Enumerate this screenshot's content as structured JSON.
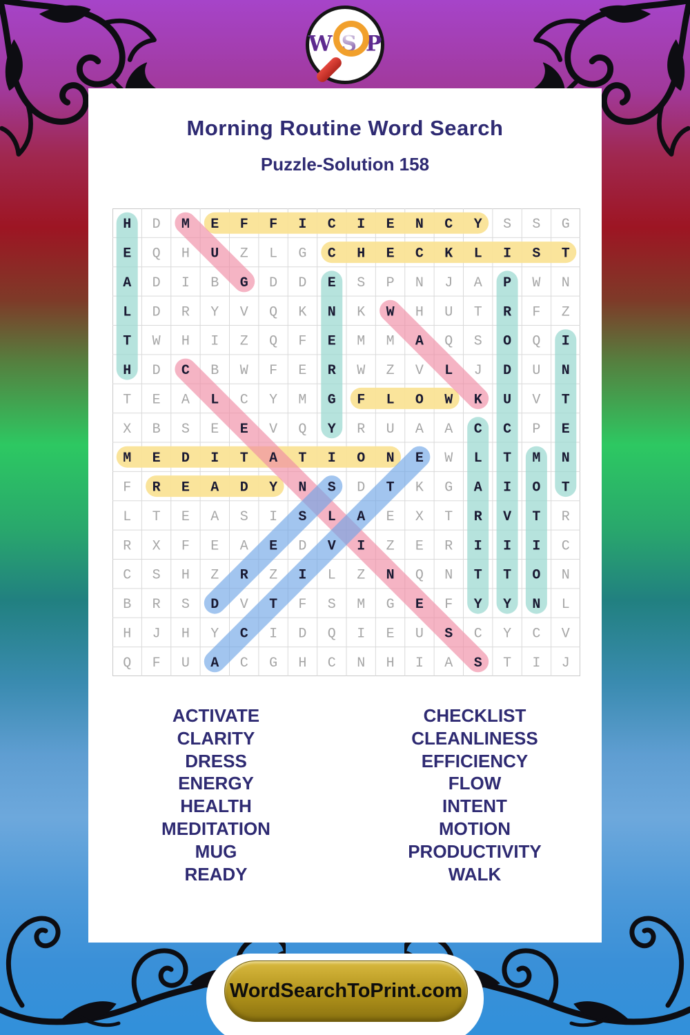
{
  "logo": {
    "w": "W",
    "s": "S",
    "p": "P"
  },
  "header": {
    "title": "Morning Routine Word Search",
    "subtitle": "Puzzle-Solution 158"
  },
  "puzzle": {
    "rows": 16,
    "cols": 16,
    "grid": [
      "HDMEFFICIENCYSSG",
      "EQHUZLGCHECKLIST",
      "ADIBGDDESPNJAPWN",
      "LDRYVQKNKWHUTRFZ",
      "TWHIZQFEMMAQSOQI",
      "HDCBWFERWZVLJDUN",
      "TEALCYMGFLOWKUVT",
      "XBSEEVQYRUAACCPE",
      "MEDITATIONEWLTMN",
      "FREADYNSDTKGAIOT",
      "LTEASISLAEXTRVTR",
      "RXFEAEDVIZERIIIC",
      "CSHZRZILZNQNTTON",
      "BRSDVTFSMGEFYYNL",
      "HJHYCIDQIEUSCYCV",
      "QFUACGHCNHIASTIJ"
    ],
    "solutions": [
      {
        "word": "EFFICIENCY",
        "row": 1,
        "col": 4,
        "dir": "right",
        "color": "yellow"
      },
      {
        "word": "CHECKLIST",
        "row": 2,
        "col": 8,
        "dir": "right",
        "color": "yellow"
      },
      {
        "word": "FLOW",
        "row": 7,
        "col": 9,
        "dir": "right",
        "color": "yellow"
      },
      {
        "word": "MEDITATION",
        "row": 9,
        "col": 1,
        "dir": "right",
        "color": "yellow"
      },
      {
        "word": "READY",
        "row": 10,
        "col": 2,
        "dir": "right",
        "color": "yellow"
      },
      {
        "word": "HEALTH",
        "row": 1,
        "col": 1,
        "dir": "down",
        "color": "teal"
      },
      {
        "word": "ENERGY",
        "row": 3,
        "col": 8,
        "dir": "down",
        "color": "teal"
      },
      {
        "word": "PRODUCTIVITY",
        "row": 3,
        "col": 14,
        "dir": "down",
        "color": "teal"
      },
      {
        "word": "INTENT",
        "row": 5,
        "col": 16,
        "dir": "down",
        "color": "teal"
      },
      {
        "word": "CLARITY",
        "row": 8,
        "col": 13,
        "dir": "down",
        "color": "teal"
      },
      {
        "word": "MOTION",
        "row": 9,
        "col": 15,
        "dir": "down",
        "color": "teal"
      },
      {
        "word": "MUG",
        "row": 1,
        "col": 3,
        "dir": "down-right",
        "color": "pink"
      },
      {
        "word": "WALK",
        "row": 4,
        "col": 10,
        "dir": "down-right",
        "color": "pink"
      },
      {
        "word": "CLEANLINESS",
        "row": 6,
        "col": 3,
        "dir": "down-right",
        "color": "pink"
      },
      {
        "word": "DRESS",
        "row": 14,
        "col": 4,
        "dir": "up-right",
        "color": "blue"
      },
      {
        "word": "ACTIVATE",
        "row": 16,
        "col": 4,
        "dir": "up-right",
        "color": "blue"
      }
    ],
    "highlight_colors": {
      "yellow": "rgba(250,227,150,0.95)",
      "teal": "rgba(154,216,208,0.72)",
      "pink": "rgba(240,140,165,0.65)",
      "blue": "rgba(110,165,230,0.64)"
    }
  },
  "word_list": {
    "left": [
      "ACTIVATE",
      "CLARITY",
      "DRESS",
      "ENERGY",
      "HEALTH",
      "MEDITATION",
      "MUG",
      "READY"
    ],
    "right": [
      "CHECKLIST",
      "CLEANLINESS",
      "EFFICIENCY",
      "FLOW",
      "INTENT",
      "MOTION",
      "PRODUCTIVITY",
      "WALK"
    ]
  },
  "footer": {
    "site_label": "WordSearchToPrint.com"
  },
  "theme": {
    "title_color": "#2e2a72",
    "filler_letter_color": "#a6a6a6",
    "solved_letter_color": "#191932",
    "grid_line_color": "#d9d9d9",
    "gold": "#b0921b",
    "logo_purple": "#5d2a8f",
    "magnifier_orange": "#f1a02c"
  }
}
